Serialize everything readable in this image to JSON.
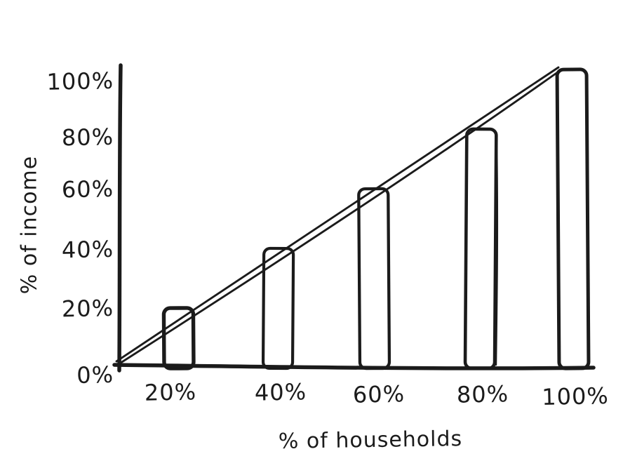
{
  "figure": {
    "background": "#ffffff",
    "ink_color": "#1b1b1b",
    "style": "hand-drawn sketch, black ink on white, no title, no legend, no grid"
  },
  "chart_data": {
    "type": "bar",
    "title": "",
    "xlabel": "% of households",
    "ylabel": "% of income",
    "categories": [
      "20%",
      "40%",
      "60%",
      "80%",
      "100%"
    ],
    "values": [
      20,
      40,
      60,
      80,
      100
    ],
    "series": [
      {
        "name": "cumulative share of income (outlined bars)",
        "x": [
          20,
          40,
          60,
          80,
          100
        ],
        "values": [
          20,
          40,
          60,
          80,
          100
        ]
      },
      {
        "name": "line of equality (diagonal, double-stroked)",
        "x": [
          0,
          100
        ],
        "values": [
          0,
          100
        ]
      }
    ],
    "x_tick_labels": [
      "20%",
      "40%",
      "60%",
      "80%",
      "100%"
    ],
    "y_tick_labels_top_to_bottom": [
      "100%",
      "80%",
      "60%",
      "40%",
      "20%",
      "0%"
    ],
    "xlim": [
      0,
      100
    ],
    "ylim": [
      0,
      100
    ],
    "grid": false,
    "legend": false
  }
}
